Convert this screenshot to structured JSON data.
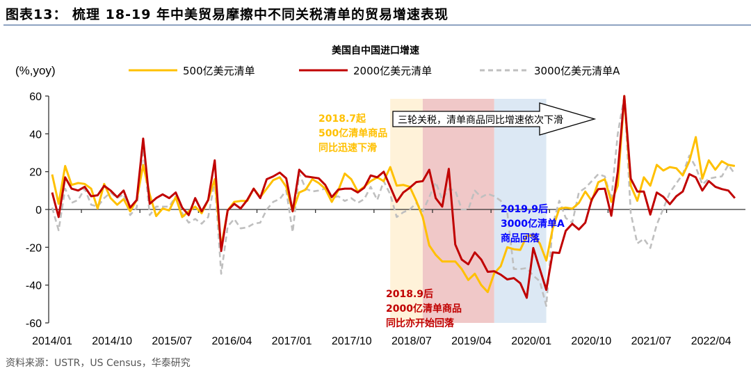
{
  "figure_title": "图表13： 梳理 18-19 年中美贸易摩擦中不同关税清单的贸易增速表现",
  "source": "资料来源：USTR，US Census，华泰研究",
  "chart_data": {
    "type": "line",
    "title": "美国自中国进口增速",
    "ylabel": "(%,yoy)",
    "xlabel": "",
    "ylim": [
      -60,
      60
    ],
    "yticks": [
      60,
      40,
      20,
      0,
      -20,
      -40,
      -60
    ],
    "x_start": "2014/01",
    "x_frequency": "monthly",
    "xtick_labels": [
      "2014/01",
      "2014/10",
      "2015/07",
      "2016/04",
      "2017/01",
      "2017/10",
      "2018/07",
      "2019/04",
      "2020/01",
      "2020/10",
      "2021/07",
      "2022/04"
    ],
    "grid": false,
    "legend_position": "top",
    "series": [
      {
        "name": "500亿美元清单",
        "color": "#FFC000",
        "dash": false,
        "values": [
          18.5,
          3,
          23,
          13,
          14,
          13.5,
          11,
          0.5,
          13.5,
          6,
          2.5,
          5.5,
          -1,
          5,
          23.5,
          8,
          -3.5,
          0.5,
          -0.5,
          6.5,
          -4,
          -1,
          1.5,
          -2,
          5,
          16,
          -20,
          -0.5,
          4,
          4.5,
          4.5,
          11,
          6.5,
          11,
          15.5,
          17,
          12,
          -1,
          9,
          10.5,
          16,
          14,
          11,
          4,
          10,
          19,
          16,
          9.5,
          12,
          15,
          17,
          15,
          22.4,
          12.6,
          13,
          12,
          4.6,
          -4,
          -19,
          -24,
          -27.5,
          -27.5,
          -27.5,
          -31.5,
          -37.3,
          -34,
          -40,
          -43.7,
          -33.7,
          -30,
          -20,
          -21,
          -21.4,
          -14,
          -13.7,
          -18,
          -27,
          -10,
          0.4,
          1,
          0.4,
          3.4,
          9.5,
          4.6,
          14.4,
          16,
          4,
          12.6,
          60,
          12.6,
          4.6,
          17,
          12.6,
          23.6,
          20.6,
          22.4,
          21.8,
          18,
          25.5,
          38.3,
          16.3,
          26,
          21,
          25.5,
          23.6,
          23
        ]
      },
      {
        "name": "2000亿美元清单",
        "color": "#C00000",
        "dash": false,
        "values": [
          9,
          -4,
          17,
          11,
          10,
          12,
          7,
          7.5,
          12.5,
          10,
          6.5,
          10,
          1,
          5,
          37.5,
          3,
          6,
          8,
          6,
          9,
          1,
          -3,
          6,
          -1,
          5,
          26,
          -22,
          -0.5,
          3,
          0.5,
          5,
          11,
          6,
          16,
          17.5,
          19.5,
          16.5,
          -1,
          21,
          17.5,
          17,
          16.5,
          13,
          6.5,
          10.5,
          11,
          11,
          9,
          11.5,
          18,
          17,
          20,
          12,
          4,
          9,
          11.5,
          14.5,
          15,
          21,
          6,
          1.5,
          21.5,
          -18.5,
          -26.5,
          -29,
          -22.7,
          -26.5,
          -33,
          -32.7,
          -34.5,
          -37,
          -36.3,
          -39,
          -46.7,
          -20.4,
          -31.5,
          -42.5,
          -22.7,
          -23,
          -11.3,
          -7.6,
          -10.6,
          -7,
          5.3,
          10.8,
          11,
          -3.3,
          20,
          60,
          16.3,
          9.5,
          9.5,
          -2.7,
          9,
          6.7,
          2.8,
          7,
          9.5,
          18.7,
          17,
          10,
          15,
          12,
          10.8,
          10,
          6
        ]
      },
      {
        "name": "3000亿美元清单A",
        "color": "#BFBFBF",
        "dash": true,
        "values": [
          1,
          -11,
          11,
          3.5,
          5,
          11,
          2.5,
          1.5,
          6,
          9,
          6,
          8,
          -3,
          1,
          32,
          -3,
          1.5,
          1.5,
          1.5,
          7,
          -2,
          -7,
          -5,
          -7.5,
          -4,
          15,
          -34,
          -9,
          -5,
          -10,
          -9.5,
          -7.5,
          -7,
          0,
          4,
          5.5,
          10,
          -12,
          19,
          11,
          9.5,
          10,
          11,
          6,
          7,
          4.5,
          6,
          3.5,
          5.5,
          12,
          5,
          15,
          8,
          -4,
          -1.5,
          0,
          3.4,
          -1,
          6.5,
          14.4,
          5.3,
          10.8,
          10,
          0,
          0,
          10,
          6.5,
          8.3,
          7,
          4.6,
          -1.5,
          -31.5,
          -31.5,
          -31,
          -35,
          -38,
          -51,
          -8,
          4.6,
          -4.5,
          -7,
          9,
          11.4,
          15,
          18.7,
          17.5,
          5.3,
          40,
          60,
          -2,
          -18,
          -15.5,
          -20.4,
          -8,
          0.4,
          9,
          13.8,
          18.7,
          28.5,
          22.4,
          13.2,
          16.3,
          17,
          17.5,
          23.6,
          18.7
        ]
      }
    ],
    "shaded_periods": [
      {
        "from": "2018/05",
        "to": "2018/10",
        "color": "#FFF2D9"
      },
      {
        "from": "2018/10",
        "to": "2019/09",
        "color": "#F0C8C8"
      },
      {
        "from": "2019/09",
        "to": "2020/05",
        "color": "#DCE8F4"
      }
    ],
    "arrow_annotation": "三轮关税，清单商品同比增速依次下滑",
    "annotations": [
      {
        "lines": [
          "2018.7起",
          "500亿清单商品",
          "同比迅速下滑"
        ],
        "color": "#FFC000"
      },
      {
        "lines": [
          "2018.9后",
          "2000亿清单商品",
          "同比亦开始回落"
        ],
        "color": "#C00000"
      },
      {
        "lines": [
          "2019,9后",
          "3000亿清单A",
          "商品回落"
        ],
        "color": "#0000FF"
      }
    ]
  }
}
